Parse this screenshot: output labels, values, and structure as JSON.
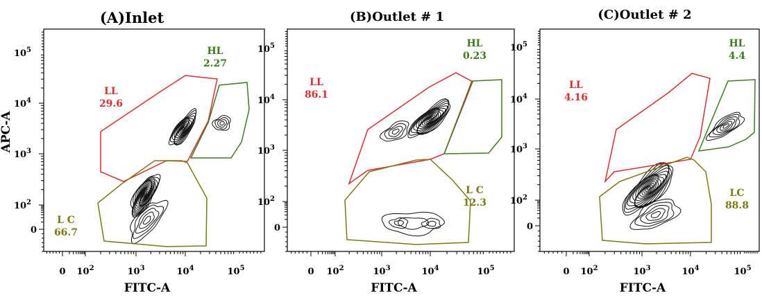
{
  "chart_data": [
    {
      "type": "contour",
      "title": "(A)Inlet",
      "xlabel": "FITC-A",
      "ylabel": "APC-A",
      "x_ticks": [
        "0",
        "10",
        "10",
        "10",
        "10"
      ],
      "x_tick_exps": [
        "",
        "2",
        "3",
        "4",
        "5"
      ],
      "y_ticks": [
        "0",
        "10",
        "10",
        "10",
        "10"
      ],
      "y_tick_exps": [
        "",
        "2",
        "3",
        "4",
        "5"
      ],
      "gates": [
        {
          "name": "LL",
          "value": "29.6",
          "color": "#e32b2b"
        },
        {
          "name": "HL",
          "value": "2.27",
          "color": "#3a7d1c"
        },
        {
          "name": "L C",
          "value": "66.7",
          "color": "#7a7a10"
        }
      ]
    },
    {
      "type": "contour",
      "title": "(B)Outlet # 1",
      "xlabel": "FITC-A",
      "ylabel": "",
      "x_ticks": [
        "0",
        "10",
        "10",
        "10",
        "10"
      ],
      "x_tick_exps": [
        "",
        "2",
        "3",
        "4",
        "5"
      ],
      "y_ticks": [
        "0",
        "10",
        "10",
        "10",
        "10"
      ],
      "y_tick_exps": [
        "",
        "2",
        "3",
        "4",
        "5"
      ],
      "gates": [
        {
          "name": "LL",
          "value": "86.1",
          "color": "#e32b2b"
        },
        {
          "name": "HL",
          "value": "0.23",
          "color": "#3a7d1c"
        },
        {
          "name": "L C",
          "value": "12.3",
          "color": "#7a7a10"
        }
      ]
    },
    {
      "type": "contour",
      "title": "(C)Outlet # 2",
      "xlabel": "FITC-A",
      "ylabel": "",
      "x_ticks": [
        "0",
        "10",
        "10",
        "10",
        "10"
      ],
      "x_tick_exps": [
        "",
        "2",
        "3",
        "4",
        "5"
      ],
      "y_ticks": [
        "0",
        "10",
        "10",
        "10",
        "10"
      ],
      "y_tick_exps": [
        "",
        "2",
        "3",
        "4",
        "5"
      ],
      "gates": [
        {
          "name": "LL",
          "value": "4.16",
          "color": "#e32b2b"
        },
        {
          "name": "HL",
          "value": "4.4",
          "color": "#3a7d1c"
        },
        {
          "name": "LC",
          "value": "88.8",
          "color": "#7a7a10"
        }
      ]
    }
  ]
}
